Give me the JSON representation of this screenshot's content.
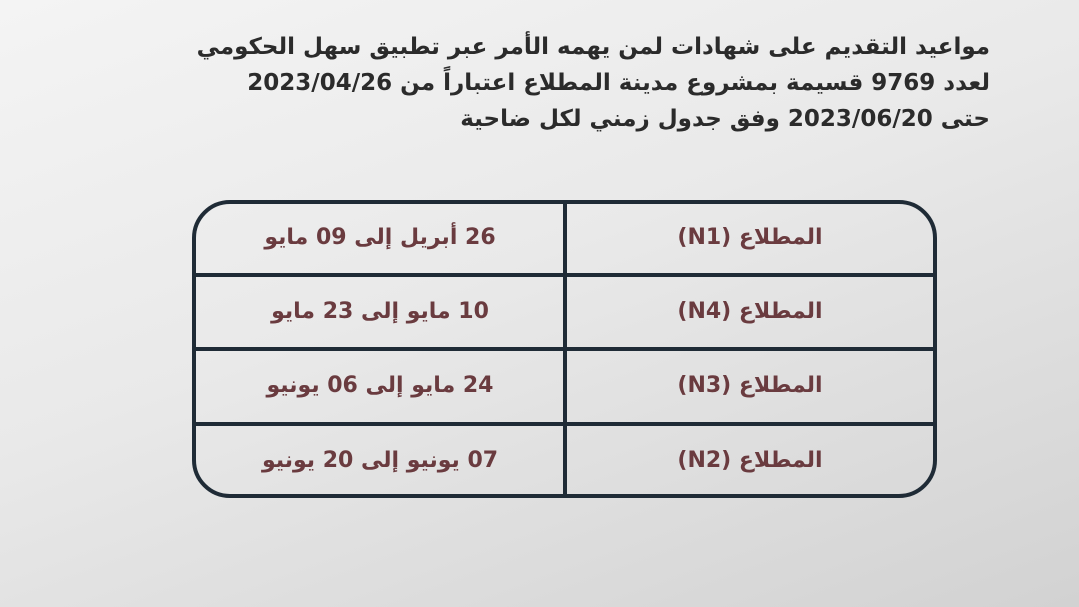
{
  "intro": {
    "lines": [
      "مواعيد التقديم على شهادات لمن يهمه الأمر عبر تطبيق سهل الحكومي",
      "لعدد 9769 قسيمة بمشروع مدينة المطلاع اعتباراً من 2023/04/26",
      "حتى 2023/06/20 وفق جدول زمني لكل ضاحية"
    ]
  },
  "table": {
    "rows": [
      [
        "المطلاع (N1)",
        "26 أبريل إلى 09 مايو"
      ],
      [
        "المطلاع (N4)",
        "10 مايو إلى 23 مايو"
      ],
      [
        "المطلاع (N3)",
        "24 مايو إلى 06 يونيو"
      ],
      [
        "المطلاع (N2)",
        "07 يونيو إلى 20 يونيو"
      ]
    ]
  }
}
